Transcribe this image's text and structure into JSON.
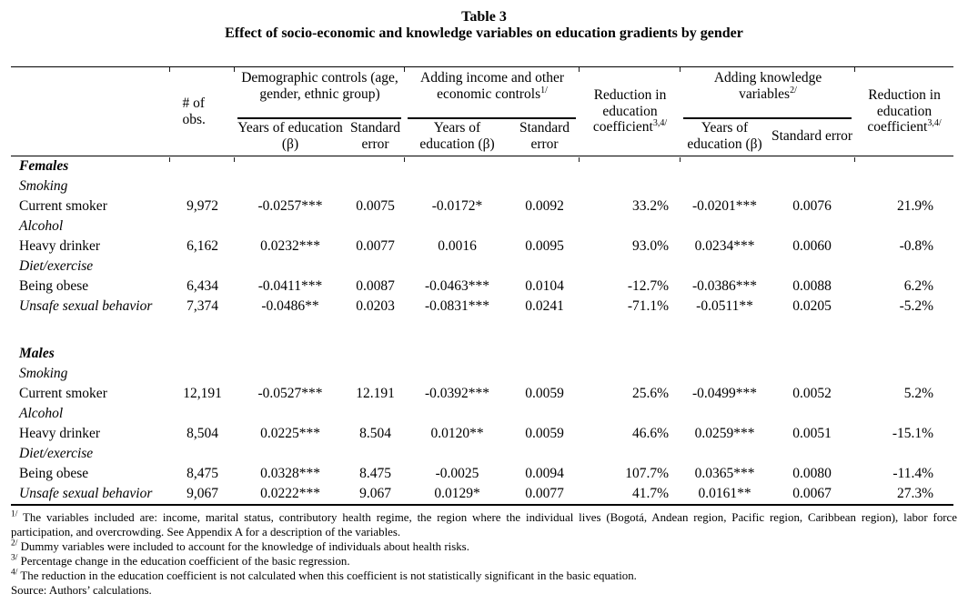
{
  "title": "Table 3",
  "subtitle": "Effect of socio-economic and knowledge variables on education gradients by gender",
  "header": {
    "obs": "# of obs.",
    "group_demographic": "Demographic controls (age, gender, ethnic group)",
    "group_income": "Adding income and other economic controls",
    "group_income_sup": "1/",
    "group_knowledge": "Adding knowledge variables",
    "group_knowledge_sup": "2/",
    "reduction": "Reduction in education coefficient",
    "reduction_sup": "3,4/",
    "years": "Years of education (β)",
    "stderr": "Standard error"
  },
  "rows": [
    {
      "type": "section",
      "label": "Females"
    },
    {
      "type": "category",
      "label": "Smoking"
    },
    {
      "type": "data",
      "label": "Current smoker",
      "v": [
        "9,972",
        "-0.0257***",
        "0.0075",
        "-0.0172*",
        "0.0092",
        "33.2%",
        "-0.0201***",
        "0.0076",
        "21.9%"
      ]
    },
    {
      "type": "category",
      "label": "Alcohol"
    },
    {
      "type": "data",
      "label": "Heavy drinker",
      "v": [
        "6,162",
        "0.0232***",
        "0.0077",
        "0.0016",
        "0.0095",
        "93.0%",
        "0.0234***",
        "0.0060",
        "-0.8%"
      ]
    },
    {
      "type": "category",
      "label": "Diet/exercise"
    },
    {
      "type": "data",
      "label": "Being obese",
      "v": [
        "6,434",
        "-0.0411***",
        "0.0087",
        "-0.0463***",
        "0.0104",
        "-12.7%",
        "-0.0386***",
        "0.0088",
        "6.2%"
      ]
    },
    {
      "type": "data-italic",
      "label": "Unsafe sexual behavior",
      "v": [
        "7,374",
        "-0.0486**",
        "0.0203",
        "-0.0831***",
        "0.0241",
        "-71.1%",
        "-0.0511**",
        "0.0205",
        "-5.2%"
      ]
    },
    {
      "type": "spacer",
      "label": ""
    },
    {
      "type": "section",
      "label": "Males"
    },
    {
      "type": "category",
      "label": "Smoking"
    },
    {
      "type": "data",
      "label": "Current smoker",
      "v": [
        "12,191",
        "-0.0527***",
        "12.191",
        "-0.0392***",
        "0.0059",
        "25.6%",
        "-0.0499***",
        "0.0052",
        "5.2%"
      ]
    },
    {
      "type": "category",
      "label": "Alcohol"
    },
    {
      "type": "data",
      "label": "Heavy drinker",
      "v": [
        "8,504",
        "0.0225***",
        "8.504",
        "0.0120**",
        "0.0059",
        "46.6%",
        "0.0259***",
        "0.0051",
        "-15.1%"
      ]
    },
    {
      "type": "category",
      "label": "Diet/exercise"
    },
    {
      "type": "data",
      "label": "Being obese",
      "v": [
        "8,475",
        "0.0328***",
        "8.475",
        "-0.0025",
        "0.0094",
        "107.7%",
        "0.0365***",
        "0.0080",
        "-11.4%"
      ]
    },
    {
      "type": "data-italic",
      "label": "Unsafe sexual behavior",
      "v": [
        "9,067",
        "0.0222***",
        "9.067",
        "0.0129*",
        "0.0077",
        "41.7%",
        "0.0161**",
        "0.0067",
        "27.3%"
      ]
    }
  ],
  "footnotes": [
    {
      "sup": "1/",
      "text": "The variables included are: income, marital status, contributory health regime, the region where the individual lives (Bogotá, Andean region, Pacific region, Caribbean region), labor force participation, and overcrowding. See Appendix A for a description of the variables."
    },
    {
      "sup": "2/",
      "text": "Dummy variables were included to account for the knowledge of individuals about health risks."
    },
    {
      "sup": "3/",
      "text": "Percentage change in the education coefficient of the basic regression."
    },
    {
      "sup": "4/",
      "text": "The reduction in the education coefficient is not calculated when this coefficient is not statistically significant in the basic equation."
    }
  ],
  "source": "Source: Authors’ calculations."
}
